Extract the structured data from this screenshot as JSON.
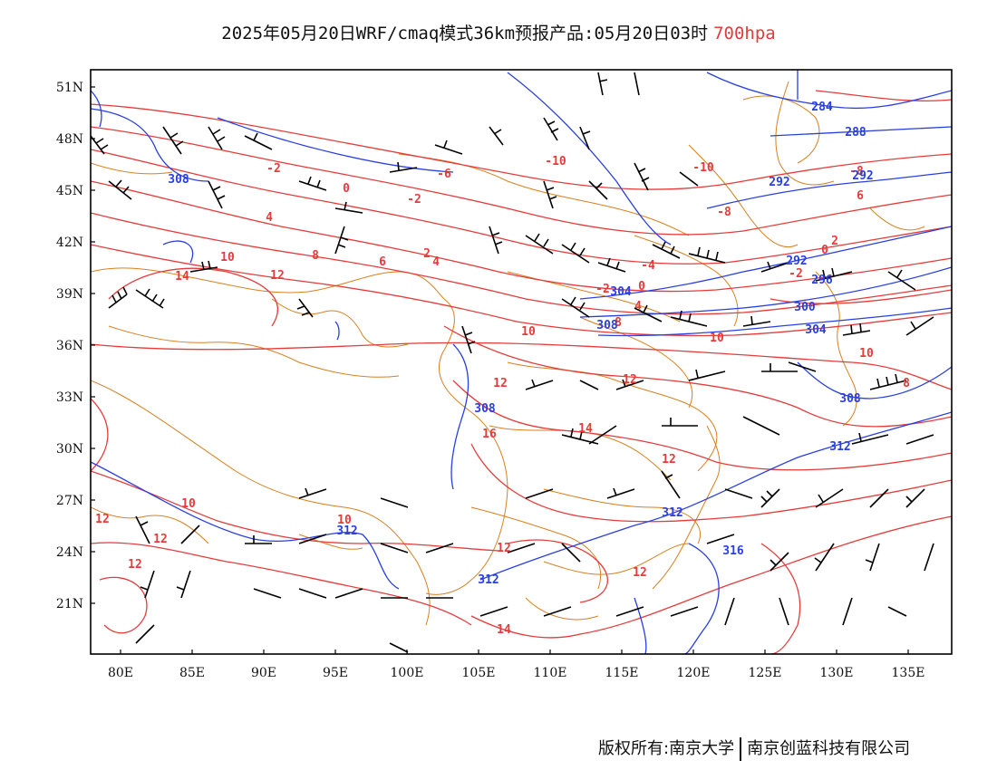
{
  "title": {
    "main": "2025年05月20日WRF/cmaq模式36km预报产品:05月20日03时",
    "level": "700hpa"
  },
  "map": {
    "lon_range": [
      78,
      138
    ],
    "lat_range": [
      18,
      52
    ],
    "x_ticks": [
      "80E",
      "85E",
      "90E",
      "95E",
      "100E",
      "105E",
      "110E",
      "115E",
      "120E",
      "125E",
      "130E",
      "135E"
    ],
    "y_ticks": [
      "51N",
      "48N",
      "45N",
      "42N",
      "39N",
      "36N",
      "33N",
      "30N",
      "27N",
      "24N",
      "21N"
    ],
    "colors": {
      "temperature": "#e53b3b",
      "height": "#2a3fe0",
      "border": "#d8801f",
      "wind": "#000000"
    },
    "temperature_labels": [
      "-10",
      "-10",
      "-8",
      "-8",
      "-6",
      "-4",
      "-2",
      "-2",
      "-2",
      "-2",
      "0",
      "0",
      "0",
      "2",
      "2",
      "4",
      "4",
      "4",
      "6",
      "6",
      "8",
      "8",
      "8",
      "10",
      "10",
      "10",
      "10",
      "10",
      "10",
      "12",
      "12",
      "12",
      "12",
      "12",
      "12",
      "12",
      "12",
      "12",
      "14",
      "14",
      "14",
      "16"
    ],
    "height_labels": [
      "284",
      "288",
      "292",
      "292",
      "292",
      "296",
      "300",
      "304",
      "304",
      "308",
      "308",
      "308",
      "308",
      "312",
      "312",
      "312",
      "312",
      "316"
    ]
  },
  "footer": {
    "left": "版权所有:南京大学",
    "right": "南京创蓝科技有限公司"
  }
}
